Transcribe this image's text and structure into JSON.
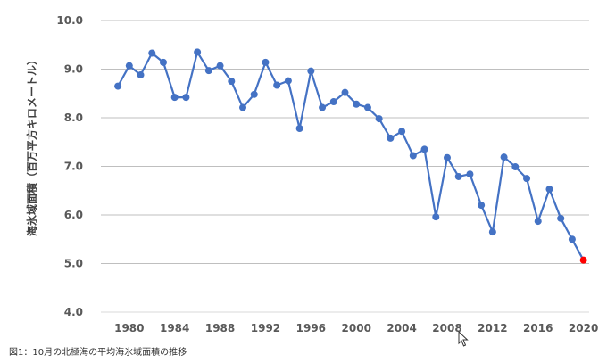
{
  "chart_data": {
    "type": "line",
    "title": "",
    "xlabel": "",
    "ylabel": "海氷域面積（百万平方キロメートル）",
    "xlim": [
      1977.5,
      2020.5
    ],
    "ylim": [
      4.0,
      10.0
    ],
    "y_ticks": [
      "4.0",
      "5.0",
      "6.0",
      "7.0",
      "8.0",
      "9.0",
      "10.0"
    ],
    "x_ticks": [
      "1980",
      "1984",
      "1988",
      "1992",
      "1996",
      "2000",
      "2004",
      "2008",
      "2012",
      "2016",
      "2020"
    ],
    "grid": true,
    "legend": "none",
    "line_color": "#4472C4",
    "highlight_color": "#FF0000",
    "series": [
      {
        "x": [
          1979,
          1980,
          1981,
          1982,
          1983,
          1984,
          1985,
          1986,
          1987,
          1988,
          1989,
          1990,
          1991,
          1992,
          1993,
          1994,
          1995,
          1996,
          1997,
          1998,
          1999,
          2000,
          2001,
          2002,
          2003,
          2004,
          2005,
          2006,
          2007,
          2008,
          2009,
          2010,
          2011,
          2012,
          2013,
          2014,
          2015,
          2016,
          2017,
          2018,
          2019,
          2020
        ],
        "values": [
          8.65,
          9.07,
          8.88,
          9.33,
          9.14,
          8.42,
          8.42,
          9.35,
          8.97,
          9.07,
          8.75,
          8.21,
          8.48,
          9.14,
          8.67,
          8.76,
          7.78,
          8.96,
          8.21,
          8.33,
          8.52,
          8.28,
          8.21,
          7.98,
          7.58,
          7.72,
          7.22,
          7.35,
          5.96,
          7.18,
          6.79,
          6.84,
          6.2,
          5.65,
          7.19,
          6.99,
          6.75,
          5.87,
          6.53,
          5.93,
          5.5,
          5.07
        ]
      }
    ],
    "highlight_point": {
      "x": 2020,
      "value": 5.07
    }
  },
  "caption": "図1：10月の北極海の平均海氷域面積の推移",
  "icons": {
    "cursor": "mouse-pointer-icon"
  }
}
